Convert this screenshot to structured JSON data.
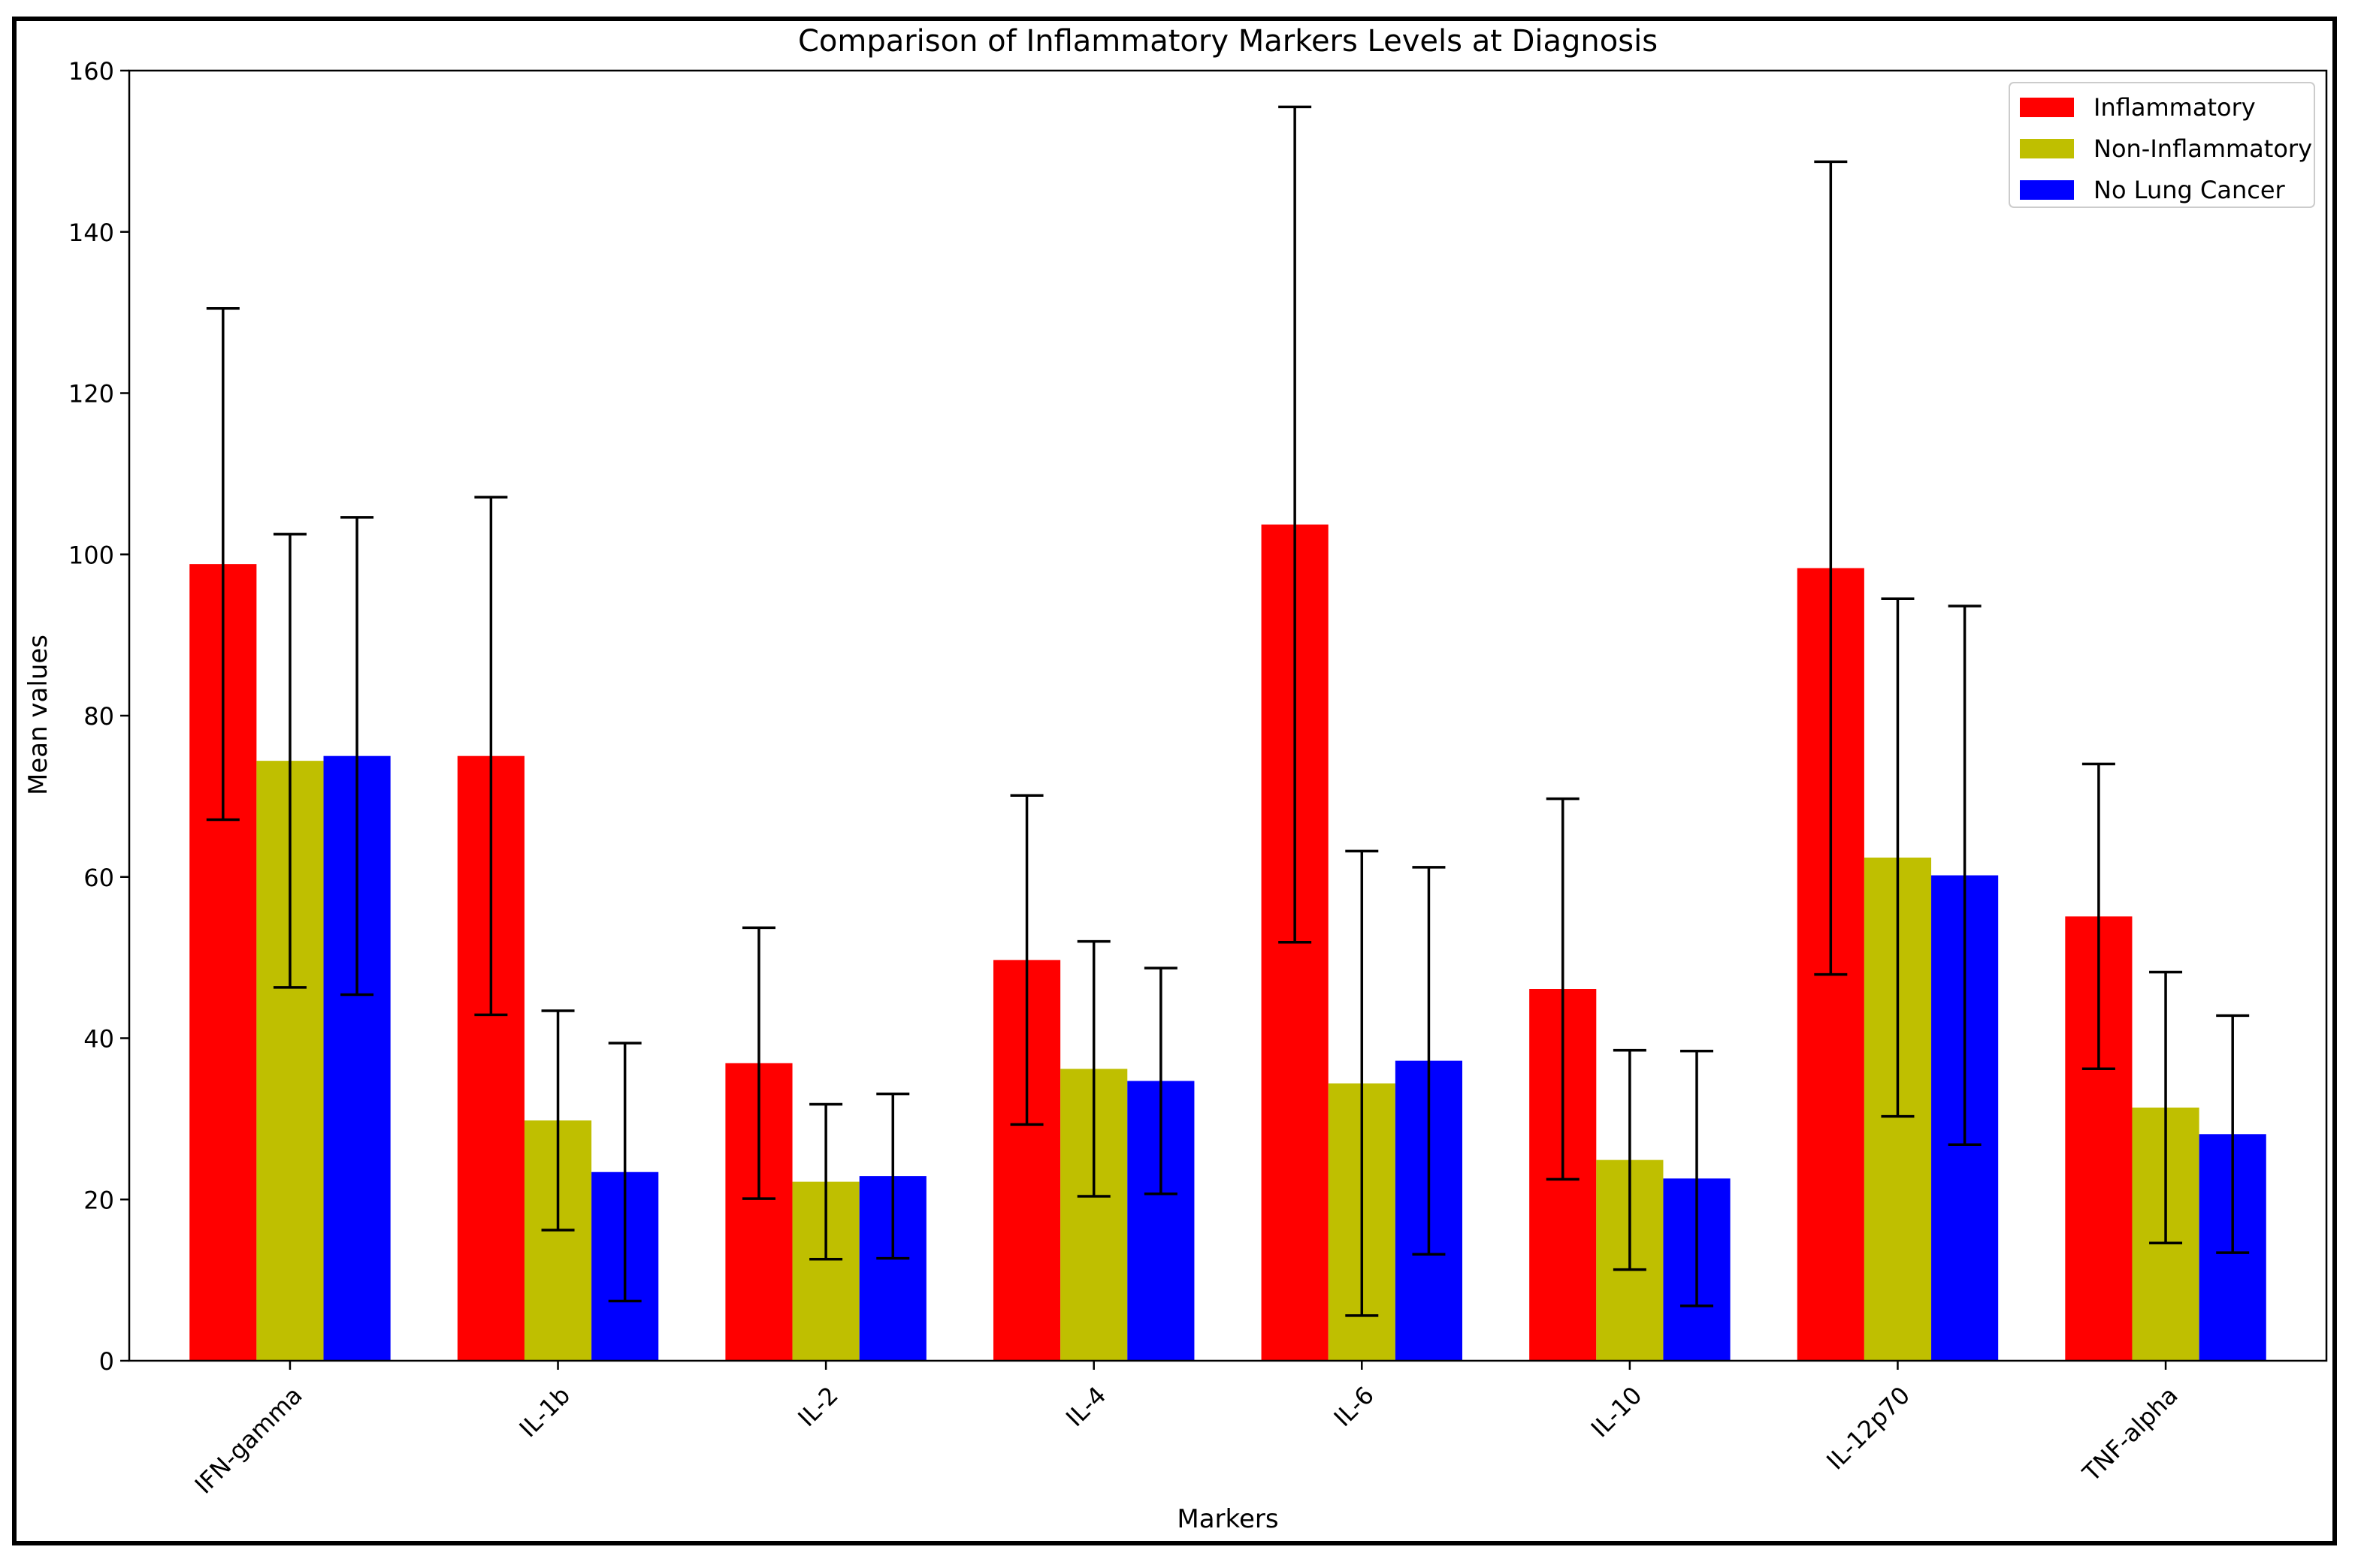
{
  "chart_data": {
    "type": "bar",
    "title": "Comparison of Inflammatory Markers Levels at Diagnosis",
    "xlabel": "Markers",
    "ylabel": "Mean values",
    "ylim": [
      0,
      160
    ],
    "yticks": [
      0,
      20,
      40,
      60,
      80,
      100,
      120,
      140,
      160
    ],
    "grid": false,
    "legend_position": "top-right",
    "categories": [
      "IFN-gamma",
      "IL-1b",
      "IL-2",
      "IL-4",
      "IL-6",
      "IL-10",
      "IL-12p70",
      "TNF-alpha"
    ],
    "series": [
      {
        "name": "Inflammatory",
        "color": "#ff0000",
        "values": [
          98.8,
          75.0,
          36.9,
          49.7,
          103.7,
          46.1,
          98.3,
          55.1
        ],
        "errors": [
          31.7,
          32.1,
          16.8,
          20.4,
          51.8,
          23.6,
          50.4,
          18.9
        ]
      },
      {
        "name": "Non-Inflammatory",
        "color": "#bfbf00",
        "values": [
          74.4,
          29.8,
          22.2,
          36.2,
          34.4,
          24.9,
          62.4,
          31.4
        ],
        "errors": [
          28.1,
          13.6,
          9.6,
          15.8,
          28.8,
          13.6,
          32.1,
          16.8
        ]
      },
      {
        "name": "No Lung Cancer",
        "color": "#0000ff",
        "values": [
          75.0,
          23.4,
          22.9,
          34.7,
          37.2,
          22.6,
          60.2,
          28.1
        ],
        "errors": [
          29.6,
          16.0,
          10.2,
          14.0,
          24.0,
          15.8,
          33.4,
          14.7
        ]
      }
    ]
  }
}
